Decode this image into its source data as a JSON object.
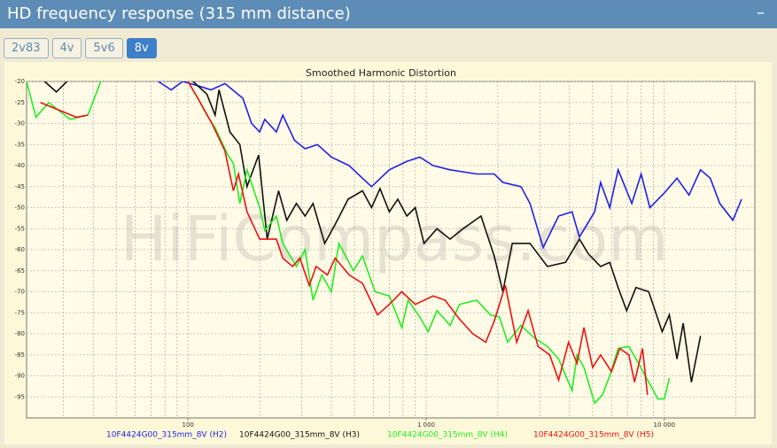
{
  "header": {
    "title": "HD frequency response (315 mm distance)",
    "collapse_icon": "–"
  },
  "tabs": [
    "2v83",
    "4v",
    "5v6",
    "8v"
  ],
  "active_tab": "8v",
  "chart_data": {
    "type": "line",
    "title": "Smoothed Harmonic Distortion",
    "watermark": "HiFiCompass.com",
    "log_x": true,
    "grid": true,
    "xlim": [
      21,
      24000
    ],
    "ylim": [
      -100,
      -20
    ],
    "yticks": [
      -20,
      -25,
      -30,
      -35,
      -40,
      -45,
      -50,
      -55,
      -60,
      -65,
      -70,
      -75,
      -80,
      -85,
      -90,
      -95
    ],
    "xticks": [
      {
        "value": 100,
        "label": "100"
      },
      {
        "value": 1000,
        "label": "1 000"
      },
      {
        "value": 10000,
        "label": "10 000"
      }
    ],
    "xgrid": [
      30,
      40,
      50,
      60,
      70,
      80,
      90,
      100,
      200,
      300,
      400,
      500,
      600,
      700,
      800,
      900,
      1000,
      2000,
      3000,
      4000,
      5000,
      6000,
      7000,
      8000,
      9000,
      10000,
      20000
    ],
    "series": [
      {
        "name": "10F4424G00_315mm_8V (H2)",
        "color": "#1f1fe8",
        "x": [
          75,
          85,
          95,
          110,
          125,
          143,
          170,
          185,
          200,
          210,
          235,
          250,
          280,
          310,
          350,
          400,
          475,
          540,
          590,
          700,
          830,
          940,
          1070,
          1260,
          1630,
          1930,
          2100,
          2500,
          2730,
          3100,
          3600,
          4100,
          4400,
          5100,
          5400,
          5900,
          6400,
          7300,
          8000,
          8700,
          10000,
          11300,
          12700,
          14200,
          15600,
          17100,
          19400,
          21100
        ],
        "values": [
          -20,
          -22,
          -20,
          -21,
          -22,
          -20.5,
          -24,
          -30,
          -32,
          -29,
          -32,
          -28,
          -34,
          -36,
          -35,
          -38,
          -40,
          -43,
          -45,
          -41,
          -39,
          -38,
          -40,
          -41,
          -42,
          -42,
          -44,
          -45,
          -49,
          -59.5,
          -52,
          -51,
          -57,
          -51,
          -44,
          -50,
          -41,
          -49,
          -42,
          -50,
          -46.5,
          -43,
          -47,
          -41,
          -43,
          -49,
          -53,
          -48
        ]
      },
      {
        "name": "10F4424G00_315mm_8V (H3)",
        "color": "#111111",
        "x": [
          25,
          28,
          31,
          null,
          105,
          120,
          130,
          135,
          150,
          165,
          177,
          198,
          215,
          240,
          260,
          285,
          310,
          335,
          375,
          415,
          470,
          540,
          590,
          640,
          700,
          760,
          830,
          900,
          980,
          1110,
          1260,
          1430,
          1700,
          1930,
          2100,
          2300,
          2730,
          3230,
          3850,
          4400,
          4800,
          5400,
          5900,
          6400,
          6950,
          7600,
          8600,
          9800,
          10500,
          11300,
          12000,
          13000,
          14200
        ],
        "values": [
          -20,
          -22.5,
          -20,
          null,
          -20,
          -23,
          -28,
          -22,
          -32,
          -35,
          -45,
          -37.5,
          -57.5,
          -46,
          -53,
          -49,
          -52,
          -49,
          -58.5,
          -54,
          -48,
          -46,
          -50,
          -45.5,
          -51,
          -48,
          -52,
          -50,
          -58.5,
          -55,
          -57.5,
          -55,
          -52,
          -61.5,
          -70,
          -58.5,
          -58.5,
          -64,
          -63,
          -57.5,
          -61,
          -64,
          -63,
          -69,
          -74.5,
          -69,
          -70,
          -79.5,
          -75.5,
          -86,
          -77.5,
          -91.5,
          -80.5
        ]
      },
      {
        "name": "10F4424G00_315mm_8V (H4)",
        "color": "#22ee22",
        "x": [
          21,
          23,
          26,
          32,
          38,
          43,
          null,
          100,
          110,
          120,
          130,
          147,
          155,
          165,
          177,
          200,
          210,
          235,
          250,
          285,
          310,
          335,
          365,
          400,
          430,
          495,
          540,
          610,
          700,
          790,
          840,
          940,
          1020,
          1110,
          1260,
          1380,
          1630,
          1860,
          2030,
          2200,
          2500,
          2850,
          3230,
          3600,
          4100,
          4300,
          4600,
          5100,
          5500,
          5900,
          6400,
          7100,
          7700,
          8600,
          9400,
          10000,
          10500
        ],
        "values": [
          -20,
          -28.5,
          -25,
          -29,
          -28,
          -20,
          null,
          -20,
          -24,
          -28,
          -31,
          -37.5,
          -39.5,
          -49,
          -41,
          -50,
          -55.5,
          -52,
          -58.5,
          -64,
          -60,
          -72,
          -66,
          -70,
          -58.5,
          -65,
          -61.5,
          -70,
          -71,
          -78.5,
          -72,
          -76,
          -79.5,
          -74.5,
          -78,
          -73,
          -72,
          -75.5,
          -76,
          -82,
          -78,
          -81,
          -83,
          -86,
          -93.5,
          -85,
          -88,
          -96.5,
          -94.5,
          -90,
          -83.5,
          -83,
          -86.5,
          -91.5,
          -95.5,
          -95.5,
          -90.5
        ]
      },
      {
        "name": "10F4424G00_315mm_8V (H5)",
        "color": "#ee1111",
        "x": [
          24,
          34,
          38,
          null,
          100,
          110,
          126,
          143,
          155,
          163,
          177,
          200,
          235,
          250,
          275,
          295,
          323,
          345,
          385,
          415,
          475,
          540,
          625,
          700,
          790,
          900,
          1070,
          1200,
          1380,
          1570,
          1780,
          1930,
          2150,
          2400,
          2680,
          2950,
          3300,
          3600,
          3960,
          4300,
          4600,
          5000,
          5400,
          6000,
          6500,
          7100,
          7500,
          8100,
          8500
        ],
        "values": [
          -25,
          -28.5,
          -28,
          null,
          -20,
          -24,
          -30,
          -36.5,
          -46,
          -42,
          -51,
          -57.5,
          -57.5,
          -62,
          -64,
          -62,
          -68.5,
          -64,
          -66,
          -62,
          -66,
          -68,
          -75.5,
          -73,
          -70,
          -73,
          -71,
          -72,
          -76.5,
          -80,
          -82,
          -77,
          -68.5,
          -82,
          -74.5,
          -83,
          -85,
          -91,
          -82,
          -87,
          -78.5,
          -88,
          -85,
          -89,
          -83.5,
          -85,
          -91.5,
          -83.5,
          -94.5
        ]
      }
    ]
  }
}
